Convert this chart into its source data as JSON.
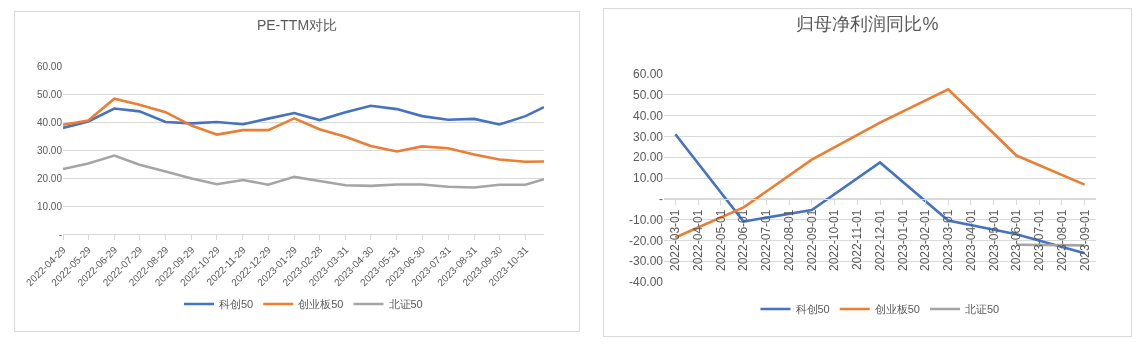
{
  "chart_data": [
    {
      "type": "line",
      "title": "PE-TTM对比",
      "x": [
        "2022-04-29",
        "2022-05-29",
        "2022-06-29",
        "2022-07-29",
        "2022-08-29",
        "2022-09-29",
        "2022-10-29",
        "2022-11-29",
        "2022-12-29",
        "2023-01-29",
        "2023-02-28",
        "2023-03-31",
        "2023-04-30",
        "2023-05-31",
        "2023-06-30",
        "2023-07-31",
        "2023-08-31",
        "2023-09-30",
        "2023-10-31",
        "2023-11-22"
      ],
      "series": [
        {
          "name": "科创50",
          "color": "#4472c4",
          "values": [
            37.9,
            40.2,
            44.8,
            43.8,
            40.0,
            39.5,
            40.0,
            39.2,
            41.2,
            43.2,
            40.7,
            43.5,
            45.8,
            44.6,
            42.1,
            40.8,
            41.1,
            39.1,
            42.1,
            45.3
          ]
        },
        {
          "name": "创业板50",
          "color": "#ed7d31",
          "values": [
            39.0,
            40.5,
            48.3,
            46.2,
            43.5,
            38.7,
            35.5,
            37.1,
            37.1,
            41.3,
            37.4,
            34.7,
            31.4,
            29.5,
            31.3,
            30.6,
            28.4,
            26.6,
            25.8,
            25.9
          ]
        },
        {
          "name": "北证50",
          "color": "#a5a5a5",
          "values": [
            23.2,
            25.2,
            28.0,
            24.7,
            22.3,
            19.8,
            17.8,
            19.3,
            17.6,
            20.4,
            18.9,
            17.4,
            17.2,
            17.7,
            17.7,
            16.9,
            16.6,
            17.6,
            17.6,
            19.6
          ]
        }
      ],
      "xlim": [
        "2022-04-29",
        "2023-11-22"
      ],
      "xticks": [
        "2022-04-29",
        "2022-05-29",
        "2022-06-29",
        "2022-07-29",
        "2022-08-29",
        "2022-09-29",
        "2022-10-29",
        "2022-11-29",
        "2022-12-29",
        "2023-01-29",
        "2023-02-28",
        "2023-03-31",
        "2023-04-30",
        "2023-05-31",
        "2023-06-30",
        "2023-07-31",
        "2023-08-31",
        "2023-09-30",
        "2023-10-31"
      ],
      "ylim": [
        0,
        60
      ],
      "yticks": [
        {
          "value": 0,
          "label": "-"
        },
        {
          "value": 10,
          "label": "10.00"
        },
        {
          "value": 20,
          "label": "20.00"
        },
        {
          "value": 30,
          "label": "30.00"
        },
        {
          "value": 40,
          "label": "40.00"
        },
        {
          "value": 50,
          "label": "50.00"
        },
        {
          "value": 60,
          "label": "60.00"
        }
      ],
      "grid": "y",
      "legend": "bottom",
      "marker": "none",
      "line_style": "solid"
    },
    {
      "type": "line",
      "title": "归母净利润同比%",
      "categories": [
        "2022-03-01",
        "2022-04-01",
        "2022-05-01",
        "2022-06-01",
        "2022-07-01",
        "2022-08-01",
        "2022-09-01",
        "2022-10-01",
        "2022-11-01",
        "2022-12-01",
        "2023-01-01",
        "2023-02-01",
        "2023-03-01",
        "2023-04-01",
        "2023-05-01",
        "2023-06-01",
        "2023-07-01",
        "2023-08-01",
        "2023-09-01"
      ],
      "series": [
        {
          "name": "科创50",
          "color": "#4472c4",
          "values": [
            31.0,
            null,
            null,
            -10.9,
            null,
            null,
            -5.4,
            null,
            null,
            17.5,
            null,
            null,
            -10.4,
            null,
            null,
            -17.0,
            null,
            null,
            -26.2
          ]
        },
        {
          "name": "创业板50",
          "color": "#ed7d31",
          "values": [
            -18.6,
            null,
            null,
            -4.1,
            null,
            null,
            18.8,
            null,
            null,
            36.6,
            null,
            null,
            52.6,
            null,
            null,
            20.8,
            null,
            null,
            6.8
          ]
        },
        {
          "name": "北证50",
          "color": "#a5a5a5",
          "values": [
            null,
            null,
            null,
            null,
            null,
            null,
            null,
            null,
            null,
            null,
            null,
            null,
            null,
            null,
            null,
            -22.1,
            null,
            null,
            -22.4
          ]
        }
      ],
      "ylim": [
        -40,
        60
      ],
      "yticks": [
        {
          "value": -40,
          "label": "-40.00"
        },
        {
          "value": -30,
          "label": "-30.00"
        },
        {
          "value": -20,
          "label": "-20.00"
        },
        {
          "value": -10,
          "label": "-10.00"
        },
        {
          "value": 0,
          "label": "-"
        },
        {
          "value": 10,
          "label": "10.00"
        },
        {
          "value": 20,
          "label": "20.00"
        },
        {
          "value": 30,
          "label": "30.00"
        },
        {
          "value": 40,
          "label": "40.00"
        },
        {
          "value": 50,
          "label": "50.00"
        },
        {
          "value": 60,
          "label": "60.00"
        }
      ],
      "grid": "y",
      "legend": "bottom",
      "marker": "none",
      "line_style": "solid"
    }
  ]
}
